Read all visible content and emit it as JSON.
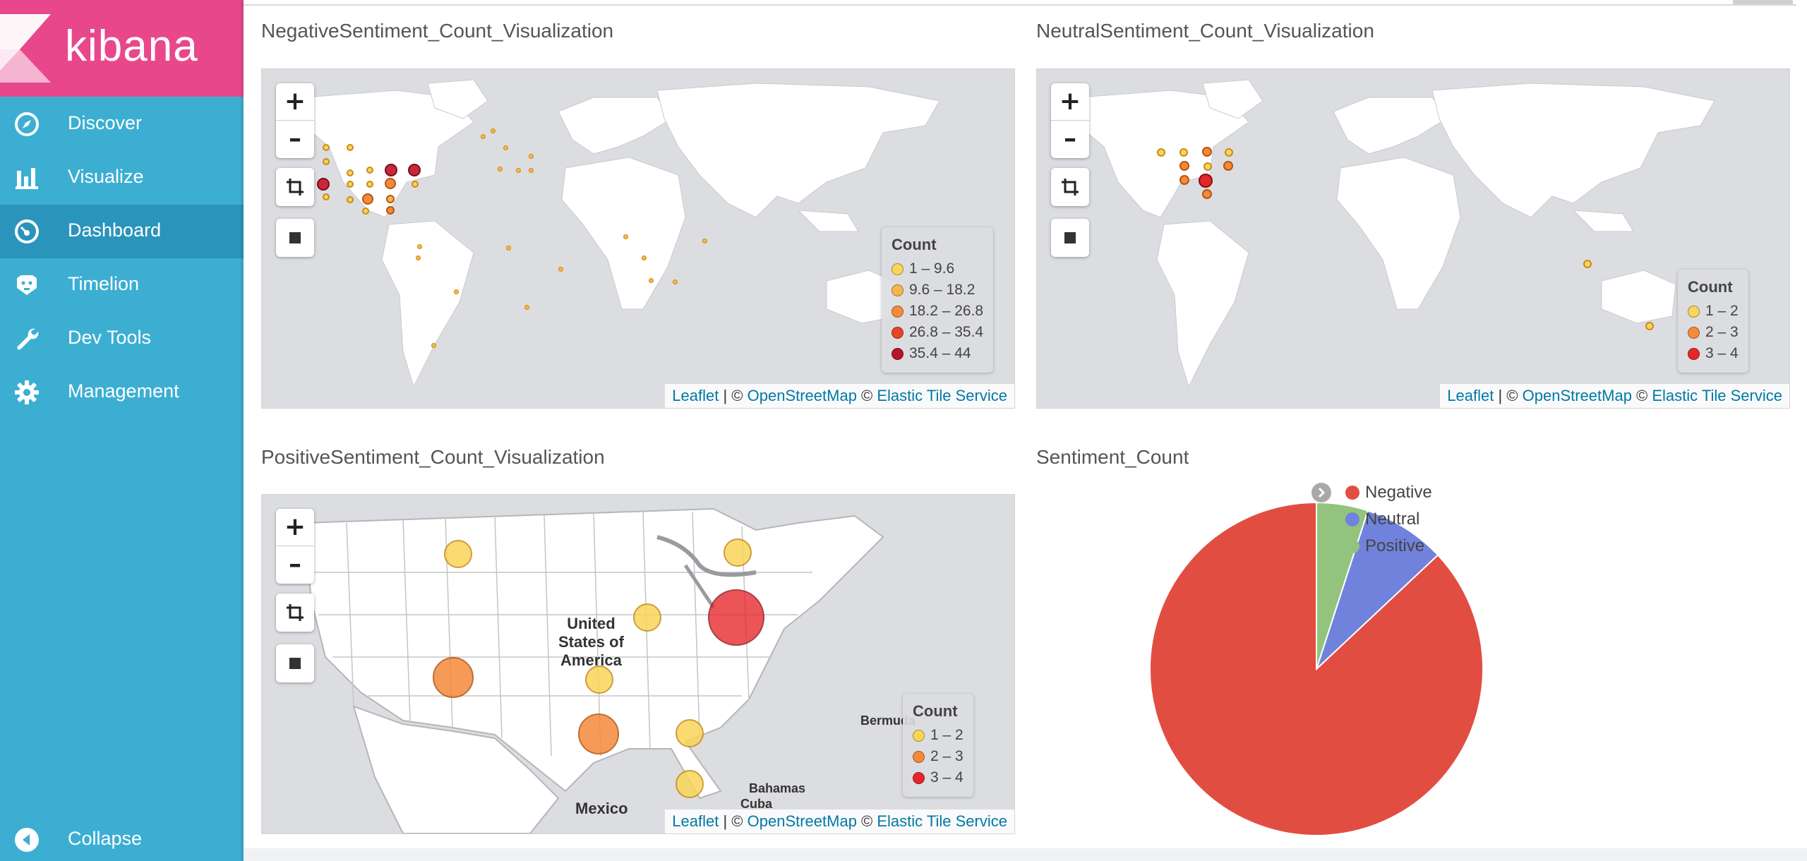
{
  "app": {
    "logo_text": "kibana",
    "colors": {
      "sidebar": "#3caed2",
      "logo_bg": "#e8488b",
      "active": "#2b94bb"
    }
  },
  "sidebar": {
    "items": [
      {
        "label": "Discover",
        "icon": "compass-icon",
        "active": false
      },
      {
        "label": "Visualize",
        "icon": "bar-chart-icon",
        "active": false
      },
      {
        "label": "Dashboard",
        "icon": "dashboard-icon",
        "active": true
      },
      {
        "label": "Timelion",
        "icon": "timelion-icon",
        "active": false
      },
      {
        "label": "Dev Tools",
        "icon": "wrench-icon",
        "active": false
      },
      {
        "label": "Management",
        "icon": "gear-icon",
        "active": false
      }
    ],
    "collapse_label": "Collapse"
  },
  "map_controls": {
    "zoom_in": "+",
    "zoom_out": "–",
    "crop_icon": "crop-icon",
    "stop_icon": "square-icon"
  },
  "attribution": {
    "leaflet": "Leaflet",
    "sep": " | © ",
    "osm": "OpenStreetMap",
    "sep2": " © ",
    "ets": "Elastic Tile Service"
  },
  "panels": {
    "negative": {
      "title": "NegativeSentiment_Count_Visualization",
      "legend_title": "Count",
      "legend": [
        {
          "label": "1 – 9.6",
          "color": "#f9d55a"
        },
        {
          "label": "9.6 – 18.2",
          "color": "#f8b54a"
        },
        {
          "label": "18.2 – 26.8",
          "color": "#f58a3a"
        },
        {
          "label": "26.8 – 35.4",
          "color": "#e6432a"
        },
        {
          "label": "35.4 – 44",
          "color": "#b5162e"
        }
      ]
    },
    "neutral": {
      "title": "NeutralSentiment_Count_Visualization",
      "legend_title": "Count",
      "legend": [
        {
          "label": "1 – 2",
          "color": "#f9d55a"
        },
        {
          "label": "2 – 3",
          "color": "#f58a3a"
        },
        {
          "label": "3 – 4",
          "color": "#e6262a"
        }
      ]
    },
    "positive": {
      "title": "PositiveSentiment_Count_Visualization",
      "legend_title": "Count",
      "legend": [
        {
          "label": "1 – 2",
          "color": "#f9d55a"
        },
        {
          "label": "2 – 3",
          "color": "#f58a3a"
        },
        {
          "label": "3 – 4",
          "color": "#e6262a"
        }
      ],
      "map_labels": {
        "country": "United States of America",
        "country_lines": [
          "United",
          "States of",
          "America"
        ],
        "mexico": "Mexico",
        "bermuda": "Bermuda",
        "bahamas": "Bahamas",
        "cuba": "Cuba"
      }
    },
    "pie": {
      "title": "Sentiment_Count"
    }
  },
  "chart_data": {
    "type": "pie",
    "title": "Sentiment_Count",
    "categories": [
      "Negative",
      "Neutral",
      "Positive"
    ],
    "values": [
      87,
      8,
      5
    ],
    "colors": [
      "#e24d42",
      "#7182dc",
      "#93c47d"
    ],
    "legend_position": "top-right"
  }
}
